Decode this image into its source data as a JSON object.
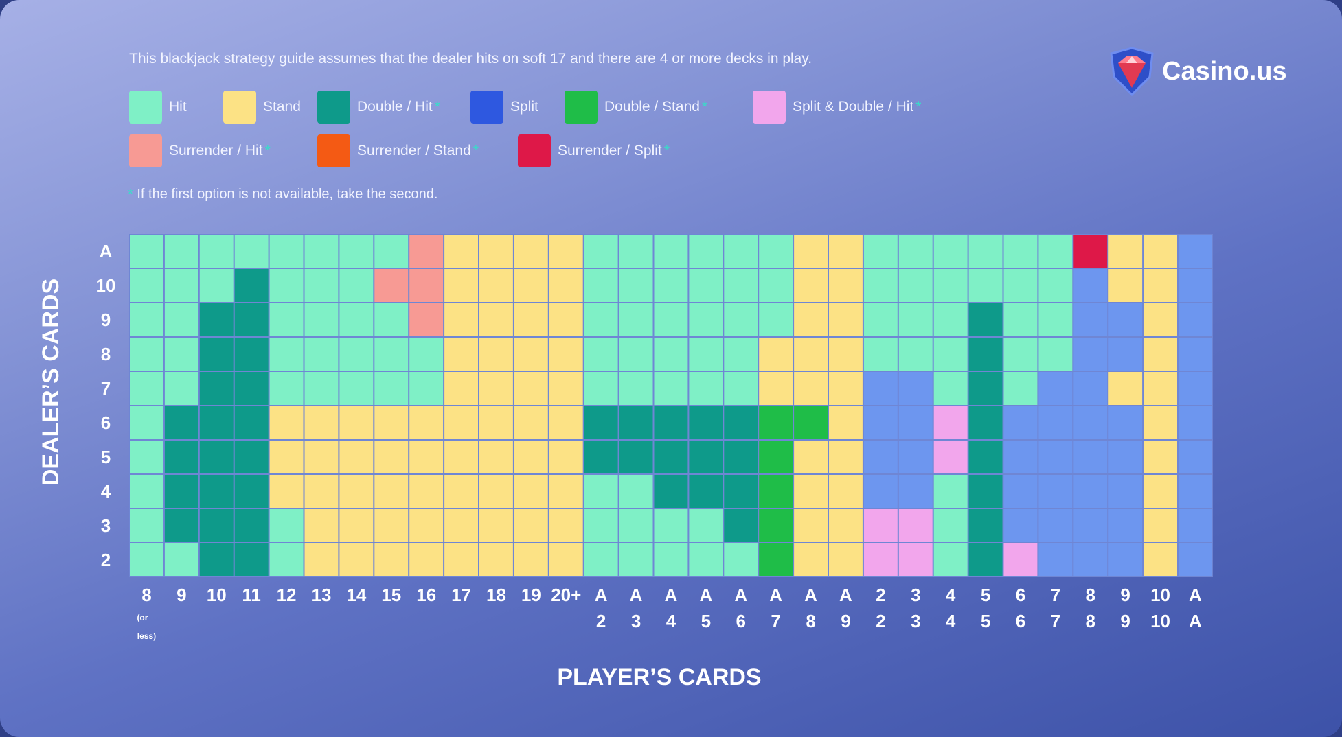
{
  "page": {
    "intro": "This blackjack strategy guide assumes that the dealer hits on soft 17 and there are 4 or more decks in play.",
    "footnote_star": "*",
    "footnote": "If the first option is not available, take the second.",
    "logo": {
      "text": "Casino.us",
      "icon": "casino-us-shield-logo"
    }
  },
  "legend": [
    {
      "key": "H",
      "label": "Hit",
      "star": false,
      "color": "#7ff0c6"
    },
    {
      "key": "S",
      "label": "Stand",
      "star": false,
      "color": "#fce285"
    },
    {
      "key": "D",
      "label": "Double / Hit",
      "star": true,
      "color": "#0e9a8a"
    },
    {
      "key": "P",
      "label": "Split",
      "star": false,
      "color": "#2e58e0"
    },
    {
      "key": "DS",
      "label": "Double / Stand",
      "star": true,
      "color": "#1fbd48"
    },
    {
      "key": "PD",
      "label": "Split & Double / Hit",
      "star": true,
      "color": "#f2a6ec"
    },
    {
      "key": "RH",
      "label": "Surrender / Hit",
      "star": true,
      "color": "#f79a94"
    },
    {
      "key": "RS",
      "label": "Surrender / Stand",
      "star": true,
      "color": "#f45a14"
    },
    {
      "key": "RP",
      "label": "Surrender / Split",
      "star": true,
      "color": "#de1848"
    }
  ],
  "chart_data": {
    "type": "heatmap",
    "xlabel": "PLAYER’S CARDS",
    "ylabel": "DEALER’S CARDS",
    "split_cell_color": "#6d96ef",
    "x": [
      {
        "top": "8",
        "bottom": "(or less)"
      },
      {
        "top": "9",
        "bottom": ""
      },
      {
        "top": "10",
        "bottom": ""
      },
      {
        "top": "11",
        "bottom": ""
      },
      {
        "top": "12",
        "bottom": ""
      },
      {
        "top": "13",
        "bottom": ""
      },
      {
        "top": "14",
        "bottom": ""
      },
      {
        "top": "15",
        "bottom": ""
      },
      {
        "top": "16",
        "bottom": ""
      },
      {
        "top": "17",
        "bottom": ""
      },
      {
        "top": "18",
        "bottom": ""
      },
      {
        "top": "19",
        "bottom": ""
      },
      {
        "top": "20+",
        "bottom": ""
      },
      {
        "top": "A",
        "bottom": "2"
      },
      {
        "top": "A",
        "bottom": "3"
      },
      {
        "top": "A",
        "bottom": "4"
      },
      {
        "top": "A",
        "bottom": "5"
      },
      {
        "top": "A",
        "bottom": "6"
      },
      {
        "top": "A",
        "bottom": "7"
      },
      {
        "top": "A",
        "bottom": "8"
      },
      {
        "top": "A",
        "bottom": "9"
      },
      {
        "top": "2",
        "bottom": "2"
      },
      {
        "top": "3",
        "bottom": "3"
      },
      {
        "top": "4",
        "bottom": "4"
      },
      {
        "top": "5",
        "bottom": "5"
      },
      {
        "top": "6",
        "bottom": "6"
      },
      {
        "top": "7",
        "bottom": "7"
      },
      {
        "top": "8",
        "bottom": "8"
      },
      {
        "top": "9",
        "bottom": "9"
      },
      {
        "top": "10",
        "bottom": "10"
      },
      {
        "top": "A",
        "bottom": "A"
      }
    ],
    "y": [
      "A",
      "10",
      "9",
      "8",
      "7",
      "6",
      "5",
      "4",
      "3",
      "2"
    ],
    "rows": [
      [
        "H",
        "H",
        "H",
        "H",
        "H",
        "H",
        "H",
        "H",
        "RH",
        "S",
        "S",
        "S",
        "S",
        "H",
        "H",
        "H",
        "H",
        "H",
        "H",
        "S",
        "S",
        "H",
        "H",
        "H",
        "H",
        "H",
        "H",
        "RP",
        "S",
        "S",
        "P"
      ],
      [
        "H",
        "H",
        "H",
        "D",
        "H",
        "H",
        "H",
        "RH",
        "RH",
        "S",
        "S",
        "S",
        "S",
        "H",
        "H",
        "H",
        "H",
        "H",
        "H",
        "S",
        "S",
        "H",
        "H",
        "H",
        "H",
        "H",
        "H",
        "P",
        "S",
        "S",
        "P"
      ],
      [
        "H",
        "H",
        "D",
        "D",
        "H",
        "H",
        "H",
        "H",
        "RH",
        "S",
        "S",
        "S",
        "S",
        "H",
        "H",
        "H",
        "H",
        "H",
        "H",
        "S",
        "S",
        "H",
        "H",
        "H",
        "D",
        "H",
        "H",
        "P",
        "P",
        "S",
        "P"
      ],
      [
        "H",
        "H",
        "D",
        "D",
        "H",
        "H",
        "H",
        "H",
        "H",
        "S",
        "S",
        "S",
        "S",
        "H",
        "H",
        "H",
        "H",
        "H",
        "S",
        "S",
        "S",
        "H",
        "H",
        "H",
        "D",
        "H",
        "H",
        "P",
        "P",
        "S",
        "P"
      ],
      [
        "H",
        "H",
        "D",
        "D",
        "H",
        "H",
        "H",
        "H",
        "H",
        "S",
        "S",
        "S",
        "S",
        "H",
        "H",
        "H",
        "H",
        "H",
        "S",
        "S",
        "S",
        "P",
        "P",
        "H",
        "D",
        "H",
        "P",
        "P",
        "S",
        "S",
        "P"
      ],
      [
        "H",
        "D",
        "D",
        "D",
        "S",
        "S",
        "S",
        "S",
        "S",
        "S",
        "S",
        "S",
        "S",
        "D",
        "D",
        "D",
        "D",
        "D",
        "DS",
        "DS",
        "S",
        "P",
        "P",
        "PD",
        "D",
        "P",
        "P",
        "P",
        "P",
        "S",
        "P"
      ],
      [
        "H",
        "D",
        "D",
        "D",
        "S",
        "S",
        "S",
        "S",
        "S",
        "S",
        "S",
        "S",
        "S",
        "D",
        "D",
        "D",
        "D",
        "D",
        "DS",
        "S",
        "S",
        "P",
        "P",
        "PD",
        "D",
        "P",
        "P",
        "P",
        "P",
        "S",
        "P"
      ],
      [
        "H",
        "D",
        "D",
        "D",
        "S",
        "S",
        "S",
        "S",
        "S",
        "S",
        "S",
        "S",
        "S",
        "H",
        "H",
        "D",
        "D",
        "D",
        "DS",
        "S",
        "S",
        "P",
        "P",
        "H",
        "D",
        "P",
        "P",
        "P",
        "P",
        "S",
        "P"
      ],
      [
        "H",
        "D",
        "D",
        "D",
        "H",
        "S",
        "S",
        "S",
        "S",
        "S",
        "S",
        "S",
        "S",
        "H",
        "H",
        "H",
        "H",
        "D",
        "DS",
        "S",
        "S",
        "PD",
        "PD",
        "H",
        "D",
        "P",
        "P",
        "P",
        "P",
        "S",
        "P"
      ],
      [
        "H",
        "H",
        "D",
        "D",
        "H",
        "S",
        "S",
        "S",
        "S",
        "S",
        "S",
        "S",
        "S",
        "H",
        "H",
        "H",
        "H",
        "H",
        "DS",
        "S",
        "S",
        "PD",
        "PD",
        "H",
        "D",
        "PD",
        "P",
        "P",
        "P",
        "S",
        "P"
      ]
    ]
  }
}
